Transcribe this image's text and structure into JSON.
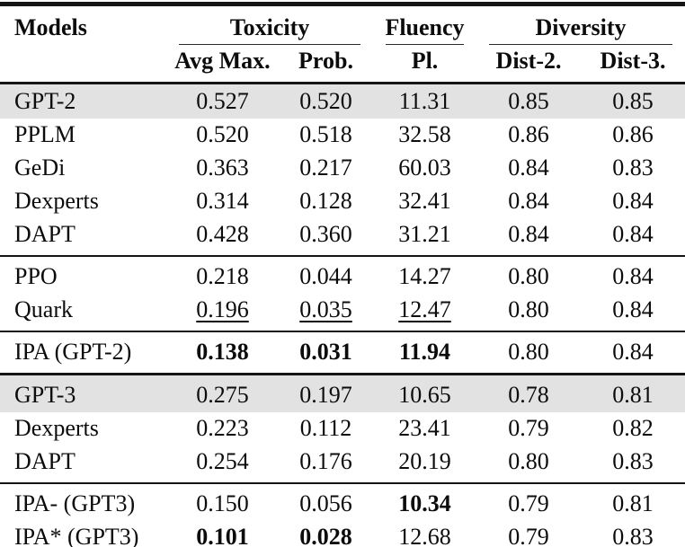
{
  "table": {
    "models_header": "Models",
    "column_groups": [
      {
        "label": "Toxicity",
        "sub": [
          "Avg Max.",
          "Prob."
        ]
      },
      {
        "label": "Fluency",
        "sub": [
          "Pl."
        ]
      },
      {
        "label": "Diversity",
        "sub": [
          "Dist-2.",
          "Dist-3."
        ]
      }
    ],
    "colors": {
      "row_shade": "#e2e2e2",
      "rule": "#151515",
      "text": "#0c0c0c"
    },
    "sections": [
      {
        "rule_above": "none",
        "rows": [
          {
            "model": "GPT-2",
            "shaded": true,
            "values": [
              {
                "text": "0.527"
              },
              {
                "text": "0.520"
              },
              {
                "text": "11.31"
              },
              {
                "text": "0.85"
              },
              {
                "text": "0.85"
              }
            ]
          },
          {
            "model": "PPLM",
            "shaded": false,
            "values": [
              {
                "text": "0.520"
              },
              {
                "text": "0.518"
              },
              {
                "text": "32.58"
              },
              {
                "text": "0.86"
              },
              {
                "text": "0.86"
              }
            ]
          },
          {
            "model": "GeDi",
            "shaded": false,
            "values": [
              {
                "text": "0.363"
              },
              {
                "text": "0.217"
              },
              {
                "text": "60.03"
              },
              {
                "text": "0.84"
              },
              {
                "text": "0.83"
              }
            ]
          },
          {
            "model": "Dexperts",
            "shaded": false,
            "values": [
              {
                "text": "0.314"
              },
              {
                "text": "0.128"
              },
              {
                "text": "32.41"
              },
              {
                "text": "0.84"
              },
              {
                "text": "0.84"
              }
            ]
          },
          {
            "model": "DAPT",
            "shaded": false,
            "values": [
              {
                "text": "0.428"
              },
              {
                "text": "0.360"
              },
              {
                "text": "31.21"
              },
              {
                "text": "0.84"
              },
              {
                "text": "0.84"
              }
            ]
          }
        ]
      },
      {
        "rule_above": "thin",
        "rows": [
          {
            "model": "PPO",
            "shaded": false,
            "values": [
              {
                "text": "0.218"
              },
              {
                "text": "0.044"
              },
              {
                "text": "14.27"
              },
              {
                "text": "0.80"
              },
              {
                "text": "0.84"
              }
            ]
          },
          {
            "model": "Quark",
            "shaded": false,
            "values": [
              {
                "text": "0.196",
                "underline": true
              },
              {
                "text": "0.035",
                "underline": true
              },
              {
                "text": "12.47",
                "underline": true
              },
              {
                "text": "0.80"
              },
              {
                "text": "0.84"
              }
            ]
          }
        ]
      },
      {
        "rule_above": "thin",
        "rows": [
          {
            "model": "IPA (GPT-2)",
            "shaded": false,
            "values": [
              {
                "text": "0.138",
                "bold": true
              },
              {
                "text": "0.031",
                "bold": true
              },
              {
                "text": "11.94",
                "bold": true
              },
              {
                "text": "0.80"
              },
              {
                "text": "0.84"
              }
            ]
          }
        ]
      },
      {
        "rule_above": "thick",
        "rows": [
          {
            "model": "GPT-3",
            "shaded": true,
            "values": [
              {
                "text": "0.275"
              },
              {
                "text": "0.197"
              },
              {
                "text": "10.65"
              },
              {
                "text": "0.78"
              },
              {
                "text": "0.81"
              }
            ]
          },
          {
            "model": "Dexperts",
            "shaded": false,
            "values": [
              {
                "text": "0.223"
              },
              {
                "text": "0.112"
              },
              {
                "text": "23.41"
              },
              {
                "text": "0.79"
              },
              {
                "text": "0.82"
              }
            ]
          },
          {
            "model": "DAPT",
            "shaded": false,
            "values": [
              {
                "text": "0.254"
              },
              {
                "text": "0.176"
              },
              {
                "text": "20.19"
              },
              {
                "text": "0.80"
              },
              {
                "text": "0.83"
              }
            ]
          }
        ]
      },
      {
        "rule_above": "thin",
        "rows": [
          {
            "model": "IPA- (GPT3)",
            "shaded": false,
            "values": [
              {
                "text": "0.150"
              },
              {
                "text": "0.056"
              },
              {
                "text": "10.34",
                "bold": true
              },
              {
                "text": "0.79"
              },
              {
                "text": "0.81"
              }
            ]
          },
          {
            "model": "IPA* (GPT3)",
            "shaded": false,
            "values": [
              {
                "text": "0.101",
                "bold": true
              },
              {
                "text": "0.028",
                "bold": true
              },
              {
                "text": "12.68"
              },
              {
                "text": "0.79"
              },
              {
                "text": "0.83"
              }
            ]
          }
        ]
      }
    ]
  }
}
